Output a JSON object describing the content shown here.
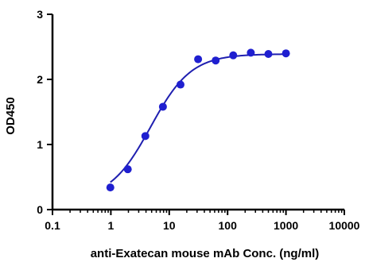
{
  "chart_data": {
    "type": "scatter",
    "xlabel": "anti-Exatecan mouse mAb Conc. (ng/ml)",
    "ylabel": "OD450",
    "x_scale": "log",
    "xlim": [
      0.1,
      10000
    ],
    "ylim": [
      0,
      3
    ],
    "x_ticks": [
      0.1,
      1,
      10,
      100,
      1000,
      10000
    ],
    "x_tick_labels": [
      "0.1",
      "1",
      "10",
      "100",
      "1000",
      "10000"
    ],
    "y_ticks": [
      0,
      1,
      2,
      3
    ],
    "y_tick_labels": [
      "0",
      "1",
      "2",
      "3"
    ],
    "grid": false,
    "marker_color": "#1f1fd0",
    "line_color": "#1f1fb0",
    "series": [
      {
        "x": [
          0.98,
          1.95,
          3.9,
          7.8,
          15.6,
          31.25,
          62.5,
          125,
          250,
          500,
          1000
        ],
        "y": [
          0.34,
          0.62,
          1.13,
          1.58,
          1.92,
          2.31,
          2.29,
          2.37,
          2.41,
          2.39,
          2.4
        ]
      }
    ],
    "fit_curve": {
      "model": "4PL",
      "bottom": 0.15,
      "top": 2.39,
      "ec50": 4.8,
      "hill": 1.25
    }
  }
}
